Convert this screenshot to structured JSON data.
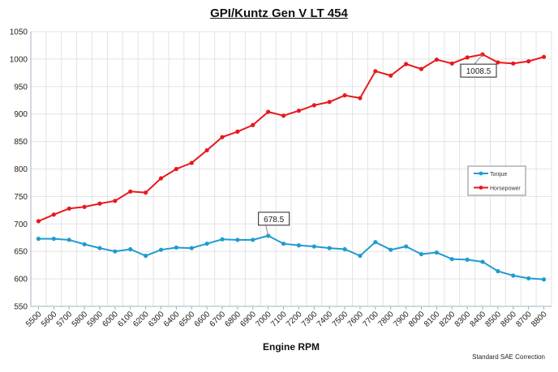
{
  "chart_data": {
    "type": "line",
    "title": "GPI/Kuntz Gen V LT 454",
    "xlabel": "Engine RPM",
    "ylabel": "",
    "note": "Standard SAE Correction",
    "ylim": [
      550,
      1050
    ],
    "yticks": [
      550,
      600,
      650,
      700,
      750,
      800,
      850,
      900,
      950,
      1000,
      1050
    ],
    "grid": true,
    "legend_position": "right",
    "x": [
      5500,
      5600,
      5700,
      5800,
      5900,
      6000,
      6100,
      6200,
      6300,
      6400,
      6500,
      6600,
      6700,
      6800,
      6900,
      7000,
      7100,
      7200,
      7300,
      7400,
      7500,
      7600,
      7700,
      7800,
      7900,
      8000,
      8100,
      8200,
      8300,
      8400,
      8500,
      8600,
      8700,
      8800
    ],
    "series": [
      {
        "name": "Torque",
        "color": "#1f9bd1",
        "values": [
          673,
          673,
          671,
          663,
          656,
          650,
          654,
          642,
          653,
          657,
          656,
          664,
          672,
          671,
          671,
          678.5,
          664,
          661,
          659,
          656,
          654,
          642,
          667,
          653,
          659,
          645,
          648,
          636,
          635,
          631,
          614,
          606,
          601,
          599
        ]
      },
      {
        "name": "Horsepower",
        "color": "#e8181c",
        "values": [
          705,
          717,
          728,
          731,
          737,
          742,
          759,
          757,
          783,
          800,
          811,
          834,
          858,
          868,
          880,
          904,
          897,
          906,
          916,
          922,
          934,
          929,
          978,
          970,
          991,
          982,
          999,
          992,
          1003,
          1008.5,
          994,
          992,
          996,
          1004
        ]
      }
    ],
    "annotations": [
      {
        "series": "Torque",
        "x": 7000,
        "label": "678.5"
      },
      {
        "series": "Horsepower",
        "x": 8400,
        "label": "1008.5"
      }
    ]
  }
}
